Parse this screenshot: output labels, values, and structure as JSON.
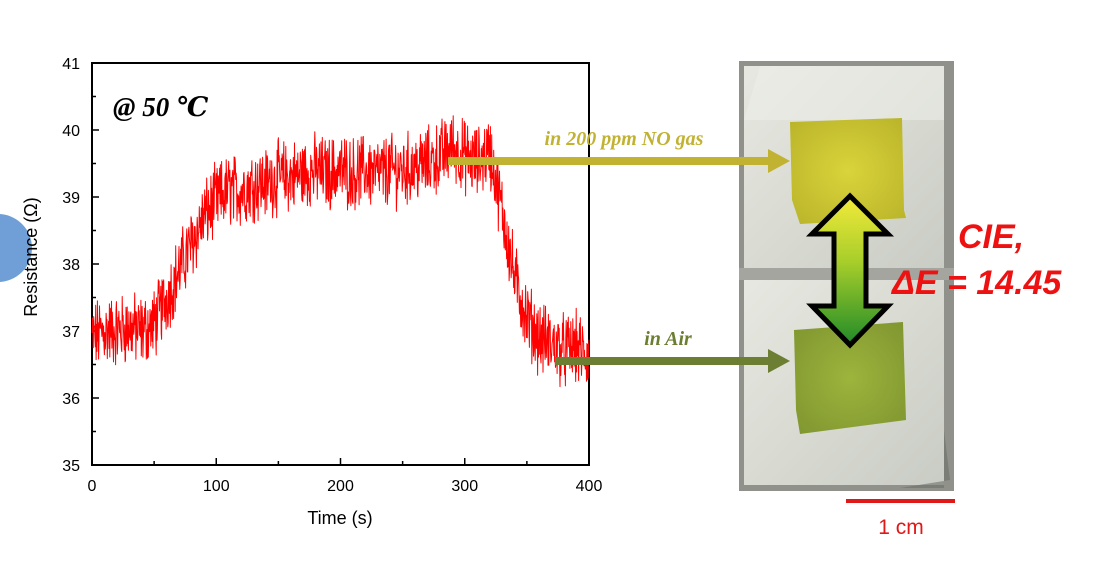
{
  "chart_data": {
    "type": "line",
    "title": "@ 50 ℃",
    "xlabel": "Time (s)",
    "ylabel": "Resistance (Ω)",
    "xlim": [
      0,
      400
    ],
    "ylim": [
      35,
      41
    ],
    "xticks": [
      0,
      100,
      200,
      300,
      400
    ],
    "yticks": [
      35,
      36,
      37,
      38,
      39,
      40,
      41
    ],
    "grid": false,
    "series": [
      {
        "color": "#ff0000",
        "x": [
          0,
          10,
          20,
          30,
          40,
          50,
          60,
          70,
          80,
          90,
          100,
          110,
          120,
          130,
          140,
          150,
          160,
          170,
          180,
          190,
          200,
          210,
          220,
          230,
          240,
          250,
          260,
          270,
          280,
          290,
          300,
          310,
          320,
          330,
          340,
          350,
          360,
          370,
          380,
          390,
          400
        ],
        "y": [
          36.9,
          37.0,
          37.0,
          37.05,
          37.0,
          37.1,
          37.5,
          37.9,
          38.3,
          38.7,
          38.95,
          39.1,
          39.1,
          39.2,
          39.2,
          39.3,
          39.3,
          39.35,
          39.4,
          39.35,
          39.4,
          39.35,
          39.4,
          39.35,
          39.4,
          39.4,
          39.45,
          39.5,
          39.6,
          39.75,
          39.6,
          39.5,
          39.7,
          38.8,
          37.8,
          37.2,
          36.9,
          36.8,
          36.7,
          36.75,
          36.6
        ]
      }
    ]
  },
  "annotations": {
    "arrow_top_label": "in 200 ppm NO gas",
    "arrow_bottom_label": "in Air",
    "cie_line1": "CIE,",
    "cie_line2": "ΔE =  14.45",
    "scale_bar_label": "1 cm"
  },
  "colors": {
    "arrow_top": "#c2b232",
    "arrow_bottom": "#6b7e32",
    "cie_text": "#ee1111",
    "scale_bar": "#e01818",
    "sample_gas": "#c7c22a",
    "sample_air": "#8ea534"
  }
}
